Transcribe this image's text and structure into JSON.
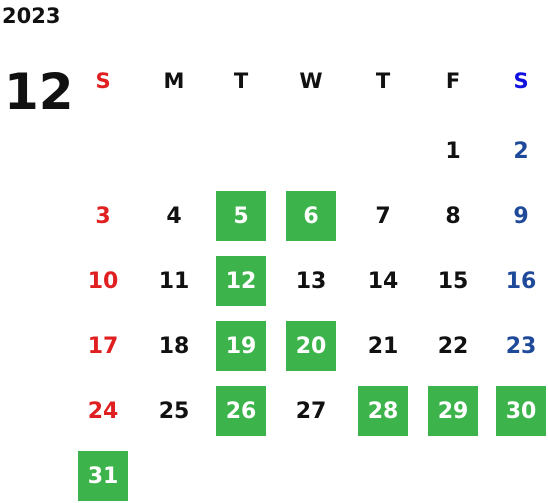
{
  "year": "2023",
  "month": "12",
  "weekdays": [
    "S",
    "M",
    "T",
    "W",
    "T",
    "F",
    "S"
  ],
  "weeks": [
    [
      null,
      null,
      null,
      null,
      null,
      {
        "label": "1",
        "highlight": false
      },
      {
        "label": "2",
        "highlight": false
      }
    ],
    [
      {
        "label": "3",
        "highlight": false
      },
      {
        "label": "4",
        "highlight": false
      },
      {
        "label": "5",
        "highlight": true
      },
      {
        "label": "6",
        "highlight": true
      },
      {
        "label": "7",
        "highlight": false
      },
      {
        "label": "8",
        "highlight": false
      },
      {
        "label": "9",
        "highlight": false
      }
    ],
    [
      {
        "label": "10",
        "highlight": false
      },
      {
        "label": "11",
        "highlight": false
      },
      {
        "label": "12",
        "highlight": true
      },
      {
        "label": "13",
        "highlight": false
      },
      {
        "label": "14",
        "highlight": false
      },
      {
        "label": "15",
        "highlight": false
      },
      {
        "label": "16",
        "highlight": false
      }
    ],
    [
      {
        "label": "17",
        "highlight": false
      },
      {
        "label": "18",
        "highlight": false
      },
      {
        "label": "19",
        "highlight": true
      },
      {
        "label": "20",
        "highlight": true
      },
      {
        "label": "21",
        "highlight": false
      },
      {
        "label": "22",
        "highlight": false
      },
      {
        "label": "23",
        "highlight": false
      }
    ],
    [
      {
        "label": "24",
        "highlight": false
      },
      {
        "label": "25",
        "highlight": false
      },
      {
        "label": "26",
        "highlight": true
      },
      {
        "label": "27",
        "highlight": false
      },
      {
        "label": "28",
        "highlight": true
      },
      {
        "label": "29",
        "highlight": true
      },
      {
        "label": "30",
        "highlight": true
      }
    ],
    [
      {
        "label": "31",
        "highlight": true
      },
      null,
      null,
      null,
      null,
      null,
      null
    ]
  ]
}
